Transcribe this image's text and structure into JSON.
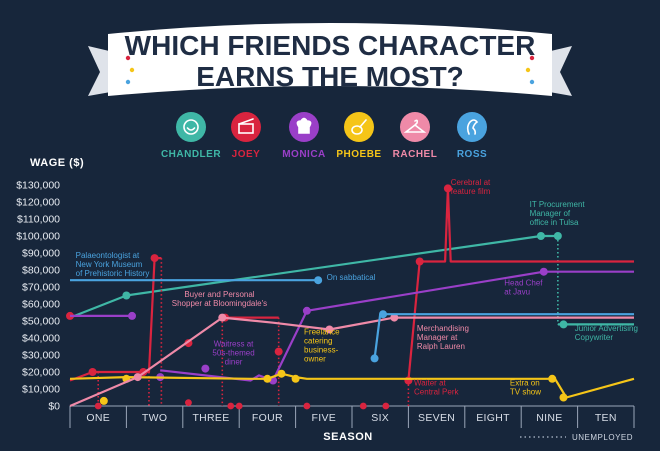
{
  "title_line1": "WHICH FRIENDS CHARACTER",
  "title_line2": "EARNS THE MOST?",
  "characters": [
    {
      "name": "CHANDLER",
      "color": "#3fb7a6",
      "icon": "smiley-face-icon"
    },
    {
      "name": "JOEY",
      "color": "#d9243f",
      "icon": "clapperboard-icon"
    },
    {
      "name": "MONICA",
      "color": "#9a3fc8",
      "icon": "chef-hat-icon"
    },
    {
      "name": "PHOEBE",
      "color": "#f5c518",
      "icon": "guitar-icon"
    },
    {
      "name": "RACHEL",
      "color": "#ef8aa8",
      "icon": "clothes-hanger-icon"
    },
    {
      "name": "ROSS",
      "color": "#4aa3df",
      "icon": "dinosaur-icon"
    }
  ],
  "legend_unemployed": "UNEMPLOYED",
  "chart_data": {
    "type": "line",
    "ylabel": "WAGE ($)",
    "xlabel": "SEASON",
    "categories": [
      "ONE",
      "TWO",
      "THREE",
      "FOUR",
      "FIVE",
      "SIX",
      "SEVEN",
      "EIGHT",
      "NINE",
      "TEN"
    ],
    "x_range": [
      0,
      10
    ],
    "yticks": [
      0,
      10000,
      20000,
      30000,
      40000,
      50000,
      60000,
      70000,
      80000,
      90000,
      100000,
      110000,
      120000,
      130000
    ],
    "ytick_labels": [
      "$0",
      "$10,000",
      "$20,000",
      "$30,000",
      "$40,000",
      "$50,000",
      "$60,000",
      "$70,000",
      "$80,000",
      "$90,000",
      "$100,000",
      "$110,000",
      "$120,000",
      "$130,000"
    ],
    "ylim": [
      0,
      130000
    ],
    "grid": false,
    "series": [
      {
        "name": "CHANDLER",
        "color": "#3fb7a6",
        "segments": [
          {
            "points": [
              [
                0,
                52000
              ],
              [
                1,
                65000
              ],
              [
                8.35,
                100000
              ],
              [
                8.65,
                100000
              ]
            ]
          },
          {
            "points": [
              [
                8.65,
                100000
              ],
              [
                8.65,
                48000
              ],
              [
                10,
                48000
              ]
            ],
            "dashed": true,
            "drop": true
          },
          {
            "points": [
              [
                8.65,
                48000
              ],
              [
                10,
                48000
              ]
            ]
          }
        ],
        "markers": [
          [
            1,
            65000
          ],
          [
            8.35,
            100000
          ],
          [
            8.65,
            100000
          ],
          [
            8.75,
            48000
          ]
        ]
      },
      {
        "name": "JOEY",
        "color": "#d9243f",
        "segments": [
          {
            "points": [
              [
                0,
                15000
              ],
              [
                0.4,
                20000
              ],
              [
                1.4,
                20000
              ],
              [
                1.5,
                87000
              ],
              [
                1.62,
                87000
              ]
            ]
          },
          {
            "points": [
              [
                2.7,
                52000
              ],
              [
                3.7,
                52000
              ]
            ]
          },
          {
            "points": [
              [
                6.0,
                15000
              ],
              [
                6.2,
                85000
              ],
              [
                6.65,
                85000
              ],
              [
                6.7,
                128000
              ],
              [
                6.75,
                85000
              ],
              [
                10,
                85000
              ]
            ]
          }
        ],
        "dashed_drops": [
          [
            0.5,
            20000
          ],
          [
            1.4,
            20000
          ],
          [
            1.62,
            87000
          ],
          [
            2.7,
            52000
          ],
          [
            3.7,
            52000
          ],
          [
            6.0,
            15000
          ]
        ],
        "points_floor": [
          [
            0.5,
            0
          ],
          [
            2.1,
            2000
          ],
          [
            2.85,
            0
          ],
          [
            3.0,
            0
          ],
          [
            4.2,
            0
          ],
          [
            5.2,
            0
          ],
          [
            5.6,
            0
          ]
        ],
        "markers": [
          [
            0,
            53000
          ],
          [
            0.4,
            20000
          ],
          [
            1.3,
            20000
          ],
          [
            1.5,
            87000
          ],
          [
            2.1,
            37000
          ],
          [
            2.75,
            52000
          ],
          [
            3.7,
            32000
          ],
          [
            6.0,
            15000
          ],
          [
            6.2,
            85000
          ],
          [
            6.7,
            128000
          ]
        ]
      },
      {
        "name": "MONICA",
        "color": "#9a3fc8",
        "segments": [
          {
            "points": [
              [
                0,
                53000
              ],
              [
                1.1,
                53000
              ]
            ]
          },
          {
            "points": [
              [
                1.6,
                21000
              ],
              [
                3.2,
                15000
              ],
              [
                3.35,
                18000
              ],
              [
                3.6,
                15000
              ],
              [
                4.2,
                56000
              ],
              [
                8.4,
                79000
              ],
              [
                10,
                79000
              ]
            ]
          }
        ],
        "markers": [
          [
            1.1,
            53000
          ],
          [
            1.6,
            17000
          ],
          [
            2.4,
            22000
          ],
          [
            3.6,
            15000
          ],
          [
            4.2,
            56000
          ],
          [
            8.4,
            79000
          ]
        ]
      },
      {
        "name": "PHOEBE",
        "color": "#f5c518",
        "segments": [
          {
            "points": [
              [
                0,
                16000
              ],
              [
                1.0,
                17000
              ],
              [
                3.2,
                16000
              ],
              [
                3.5,
                16000
              ],
              [
                3.75,
                19000
              ],
              [
                4.0,
                17000
              ],
              [
                4.2,
                16000
              ],
              [
                8.6,
                16000
              ],
              [
                8.8,
                5000
              ],
              [
                10,
                16000
              ]
            ]
          }
        ],
        "markers": [
          [
            0.6,
            3000
          ],
          [
            1.0,
            16000
          ],
          [
            3.5,
            16000
          ],
          [
            3.75,
            19000
          ],
          [
            4.0,
            16000
          ],
          [
            8.55,
            16000
          ],
          [
            8.75,
            5000
          ]
        ]
      },
      {
        "name": "RACHEL",
        "color": "#ef8aa8",
        "segments": [
          {
            "points": [
              [
                0,
                0
              ],
              [
                1.2,
                17000
              ],
              [
                2.7,
                52000
              ],
              [
                3.6,
                49000
              ],
              [
                4.6,
                45000
              ],
              [
                5.75,
                52000
              ],
              [
                10,
                52000
              ]
            ]
          }
        ],
        "markers": [
          [
            1.2,
            17000
          ],
          [
            2.7,
            52000
          ],
          [
            4.6,
            45000
          ],
          [
            5.75,
            52000
          ]
        ]
      },
      {
        "name": "ROSS",
        "color": "#4aa3df",
        "segments": [
          {
            "points": [
              [
                0,
                74000
              ],
              [
                4.4,
                74000
              ]
            ]
          },
          {
            "points": [
              [
                5.4,
                28000
              ],
              [
                5.5,
                54000
              ],
              [
                10,
                54000
              ]
            ]
          }
        ],
        "markers": [
          [
            4.4,
            74000
          ],
          [
            5.4,
            28000
          ],
          [
            5.55,
            54000
          ]
        ]
      }
    ],
    "annotations": [
      {
        "text": [
          "Palaeontologist at",
          "New York Museum",
          "of Prehistoric History"
        ],
        "color": "#4aa3df",
        "x": 0.1,
        "y": 87000,
        "anchor": "start"
      },
      {
        "text": [
          "Buyer and Personal",
          "Shopper at Bloomingdale's"
        ],
        "color": "#ef8aa8",
        "x": 2.65,
        "y": 64000,
        "anchor": "middle"
      },
      {
        "text": [
          "Waitress at",
          "50s-themed",
          "diner"
        ],
        "color": "#9a3fc8",
        "x": 2.9,
        "y": 35000,
        "anchor": "middle"
      },
      {
        "text": [
          "On sabbatical"
        ],
        "color": "#4aa3df",
        "x": 4.55,
        "y": 74000,
        "anchor": "start"
      },
      {
        "text": [
          "Freelance",
          "catering",
          "business-",
          "owner"
        ],
        "color": "#f5c518",
        "x": 4.15,
        "y": 42000,
        "anchor": "start"
      },
      {
        "text": [
          "Merchandising",
          "Manager at",
          "Ralph Lauren"
        ],
        "color": "#ef8aa8",
        "x": 6.15,
        "y": 44000,
        "anchor": "start"
      },
      {
        "text": [
          "Cerebral at",
          "feature film"
        ],
        "color": "#d9243f",
        "x": 6.75,
        "y": 130000,
        "anchor": "start"
      },
      {
        "text": [
          "IT Procurement",
          "Manager of",
          "office in Tulsa"
        ],
        "color": "#3fb7a6",
        "x": 8.15,
        "y": 117000,
        "anchor": "start"
      },
      {
        "text": [
          "Head Chef",
          "at Javu"
        ],
        "color": "#9a3fc8",
        "x": 7.7,
        "y": 71000,
        "anchor": "start"
      },
      {
        "text": [
          "Junior Advertising",
          "Copywriter"
        ],
        "color": "#3fb7a6",
        "x": 8.95,
        "y": 44000,
        "anchor": "start"
      },
      {
        "text": [
          "Waiter at",
          "Central Perk"
        ],
        "color": "#d9243f",
        "x": 6.1,
        "y": 12000,
        "anchor": "start"
      },
      {
        "text": [
          "Extra on",
          "TV show"
        ],
        "color": "#f5c518",
        "x": 7.8,
        "y": 12000,
        "anchor": "start"
      }
    ]
  }
}
